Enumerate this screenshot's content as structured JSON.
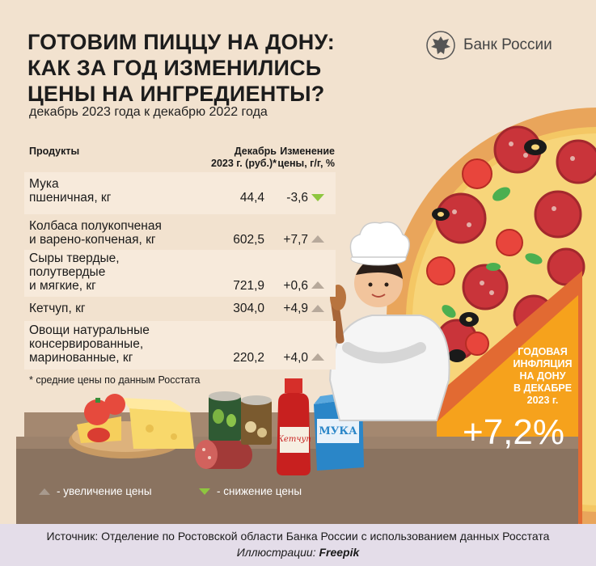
{
  "title_lines": [
    "ГОТОВИМ ПИЦЦУ НА ДОНУ:",
    "КАК ЗА ГОД ИЗМЕНИЛИСЬ",
    "ЦЕНЫ НА ИНГРЕДИЕНТЫ?"
  ],
  "subtitle": "декабрь 2023 года к декабрю 2022 года",
  "brand": {
    "name": "Банк России",
    "icon": "eagle-emblem-icon"
  },
  "table": {
    "headers": {
      "product": "Продукты",
      "price_line1": "Декабрь",
      "price_line2": "2023 г. (руб.)*",
      "change_line1": "Изменение",
      "change_line2": "цены, г/г, %"
    },
    "rows": [
      {
        "name_lines": [
          "Мука",
          "пшеничная, кг"
        ],
        "price": "44,4",
        "change": "-3,6",
        "direction": "down"
      },
      {
        "name_lines": [
          "Колбаса полукопченая",
          "и варено-копченая, кг"
        ],
        "price": "602,5",
        "change": "+7,7",
        "direction": "up"
      },
      {
        "name_lines": [
          "Сыры твердые,",
          "полутвердые",
          "и мягкие, кг"
        ],
        "price": "721,9",
        "change": "+0,6",
        "direction": "up"
      },
      {
        "name_lines": [
          "Кетчуп, кг"
        ],
        "price": "304,0",
        "change": "+4,9",
        "direction": "up"
      },
      {
        "name_lines": [
          "Овощи натуральные",
          "консервированные,",
          "маринованные, кг"
        ],
        "price": "220,2",
        "change": "+4,0",
        "direction": "up"
      }
    ]
  },
  "footnote": "* средние цены по данным Росстата",
  "badge": {
    "label_lines": [
      "ГОДОВАЯ",
      "ИНФЛЯЦИЯ",
      "НА ДОНУ",
      "В ДЕКАБРЕ",
      "2023 г."
    ],
    "value": "+7,2%"
  },
  "props": {
    "ketchup_label": "Кетчуп",
    "flour_label": "МУКА"
  },
  "legend": {
    "increase": "- увеличение цены",
    "decrease": "- снижение цены"
  },
  "footer": {
    "source": "Источник: Отделение по Ростовской области Банка России с использованием данных Росстата",
    "illustrations_label": "Иллюстрации:",
    "illustrations_value": "Freepik"
  },
  "colors": {
    "background": "#f2e2cf",
    "row_shade": "#f7eadb",
    "arrow_up": "#b7a99b",
    "arrow_down": "#8ec63f",
    "badge": "#f6a21c",
    "table_surface": "#8a7360",
    "footer_band": "#e4dde9"
  }
}
